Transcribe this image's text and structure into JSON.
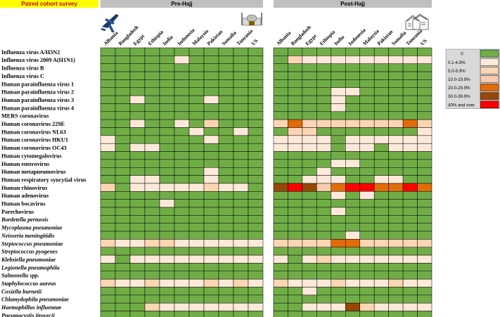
{
  "header": {
    "survey_label": "Paired cohort survey",
    "pre_label": "Pre-Hajj",
    "post_label": "Post-Hajj"
  },
  "chart_data": {
    "type": "heatmap",
    "countries_pre": [
      "Albania",
      "Bangladesh",
      "Egypt",
      "Ethiopia",
      "India",
      "Indonesia",
      "Malaysia",
      "Pakistan",
      "Somalia",
      "Tanzania",
      "US"
    ],
    "countries_post": [
      "Albania",
      "Bangladesh",
      "Egypt",
      "Ethiopia",
      "India",
      "Indonesia",
      "Malaysia",
      "Pakistan",
      "Somalia",
      "Tanzania",
      "US"
    ],
    "pathogens": [
      {
        "name": "Influenza virus A/H3N2",
        "italic": false
      },
      {
        "name": "Influenza virus 2009 A(H1N1)",
        "italic": false
      },
      {
        "name": "Influenza virus B",
        "italic": false
      },
      {
        "name": "Influenza virus C",
        "italic": false
      },
      {
        "name": "Human parainfluenza virus 1",
        "italic": false
      },
      {
        "name": "Human parainfluenza virus 2",
        "italic": false
      },
      {
        "name": "Human parainfluenza virus 3",
        "italic": false
      },
      {
        "name": "Human parainfluenza virus 4",
        "italic": false
      },
      {
        "name": "MERS coronavirus",
        "italic": false
      },
      {
        "name": "Human coronavirus 229E",
        "italic": false
      },
      {
        "name": "Human coronavirus NL63",
        "italic": false
      },
      {
        "name": "Human coronavirus HKU1",
        "italic": false
      },
      {
        "name": "Human coronavirus OC43",
        "italic": false
      },
      {
        "name": "Human cytomegalovirus",
        "italic": false
      },
      {
        "name": "Human enterovirus",
        "italic": false
      },
      {
        "name": "Human metapneumovirus",
        "italic": false
      },
      {
        "name": "Human respiratory syncytial virus",
        "italic": false
      },
      {
        "name": "Human rhinovirus",
        "italic": false
      },
      {
        "name": "Human adenovirus",
        "italic": false
      },
      {
        "name": "Human bocavirus",
        "italic": false
      },
      {
        "name": "Parechovirus",
        "italic": false
      },
      {
        "name": "Bordetella pertussis",
        "italic": true
      },
      {
        "name": "Mycoplasma pneumoniae",
        "italic": true
      },
      {
        "name": "Neisseria meningitidis",
        "italic": true
      },
      {
        "name": "Steptococcus pneumoniae",
        "italic": true
      },
      {
        "name": "Streptococcus pyogenes",
        "italic": true
      },
      {
        "name": "Klebsiella pneumoniae",
        "italic": true
      },
      {
        "name": "Legionella pneumophila",
        "italic": true
      },
      {
        "name": "Salmonella spp.",
        "italic": true
      },
      {
        "name": "Staphylococcus aureus",
        "italic": true
      },
      {
        "name": "Coxiella burnetii",
        "italic": true
      },
      {
        "name": "Chlamydophila pneumoniae",
        "italic": true
      },
      {
        "name": "Haemophillus influenzae",
        "italic": true
      },
      {
        "name": "Pneumocystis jirovecii",
        "italic": true
      }
    ],
    "legend": [
      {
        "label": "0",
        "color": "#70ad47"
      },
      {
        "label": "0.1-4.9%",
        "color": "#fde9d9"
      },
      {
        "label": "5.0-9.9%",
        "color": "#fcd5b4"
      },
      {
        "label": "10.0-19.9%",
        "color": "#f8cbad"
      },
      {
        "label": "20.0-29.9%",
        "color": "#e26b0a"
      },
      {
        "label": "30.0-39.9%",
        "color": "#974706"
      },
      {
        "label": "40% and over",
        "color": "#ff0000"
      }
    ],
    "pre": [
      [
        0,
        0,
        0,
        0,
        0,
        0,
        0,
        0,
        0,
        0,
        0
      ],
      [
        0,
        0,
        0,
        0,
        0,
        1,
        0,
        0,
        0,
        0,
        0
      ],
      [
        0,
        0,
        0,
        0,
        0,
        0,
        0,
        0,
        0,
        0,
        0
      ],
      [
        0,
        0,
        0,
        0,
        0,
        0,
        0,
        0,
        0,
        0,
        0
      ],
      [
        0,
        0,
        0,
        0,
        0,
        0,
        0,
        0,
        0,
        0,
        0
      ],
      [
        0,
        0,
        0,
        0,
        0,
        0,
        0,
        0,
        0,
        0,
        0
      ],
      [
        0,
        0,
        1,
        0,
        0,
        0,
        0,
        1,
        0,
        0,
        0
      ],
      [
        0,
        0,
        0,
        0,
        0,
        0,
        0,
        0,
        0,
        0,
        0
      ],
      [
        0,
        0,
        0,
        0,
        0,
        0,
        0,
        0,
        0,
        0,
        0
      ],
      [
        0,
        0,
        1,
        0,
        0,
        1,
        0,
        2,
        0,
        0,
        0
      ],
      [
        0,
        0,
        0,
        0,
        0,
        0,
        1,
        0,
        0,
        1,
        0
      ],
      [
        1,
        0,
        0,
        0,
        0,
        0,
        0,
        1,
        0,
        0,
        0
      ],
      [
        1,
        0,
        1,
        1,
        0,
        0,
        0,
        0,
        0,
        0,
        0
      ],
      [
        0,
        0,
        0,
        0,
        0,
        0,
        0,
        0,
        0,
        0,
        0
      ],
      [
        0,
        0,
        0,
        0,
        0,
        0,
        0,
        0,
        0,
        0,
        0
      ],
      [
        0,
        0,
        0,
        0,
        0,
        0,
        0,
        1,
        0,
        0,
        0
      ],
      [
        0,
        0,
        1,
        1,
        0,
        0,
        0,
        1,
        0,
        0,
        0
      ],
      [
        2,
        0,
        1,
        1,
        1,
        1,
        1,
        2,
        1,
        1,
        0
      ],
      [
        0,
        0,
        0,
        0,
        0,
        0,
        0,
        0,
        0,
        0,
        0
      ],
      [
        0,
        0,
        0,
        0,
        1,
        0,
        0,
        0,
        0,
        0,
        0
      ],
      [
        0,
        0,
        0,
        0,
        0,
        0,
        0,
        0,
        0,
        0,
        0
      ],
      [
        0,
        0,
        0,
        0,
        0,
        0,
        0,
        0,
        0,
        0,
        0
      ],
      [
        0,
        0,
        0,
        0,
        0,
        0,
        0,
        0,
        0,
        0,
        0
      ],
      [
        0,
        0,
        0,
        0,
        0,
        0,
        0,
        0,
        0,
        0,
        0
      ],
      [
        2,
        1,
        1,
        2,
        2,
        1,
        1,
        1,
        1,
        1,
        1
      ],
      [
        0,
        0,
        0,
        0,
        0,
        0,
        0,
        0,
        0,
        0,
        0
      ],
      [
        1,
        0,
        1,
        1,
        1,
        1,
        1,
        1,
        1,
        1,
        1
      ],
      [
        0,
        0,
        0,
        0,
        0,
        0,
        0,
        0,
        0,
        0,
        0
      ],
      [
        0,
        0,
        0,
        0,
        0,
        0,
        0,
        0,
        0,
        0,
        0
      ],
      [
        2,
        1,
        1,
        2,
        1,
        1,
        1,
        2,
        1,
        2,
        1
      ],
      [
        0,
        0,
        0,
        0,
        0,
        0,
        0,
        0,
        0,
        0,
        0
      ],
      [
        0,
        0,
        0,
        0,
        0,
        0,
        0,
        0,
        0,
        0,
        0
      ],
      [
        0,
        0,
        0,
        2,
        1,
        1,
        1,
        1,
        1,
        1,
        1
      ],
      [
        0,
        0,
        0,
        0,
        0,
        0,
        0,
        0,
        0,
        0,
        0
      ]
    ],
    "post": [
      [
        0,
        0,
        0,
        0,
        0,
        0,
        0,
        0,
        0,
        0,
        0
      ],
      [
        0,
        2,
        1,
        1,
        1,
        1,
        1,
        1,
        1,
        1,
        1
      ],
      [
        0,
        0,
        0,
        0,
        0,
        0,
        0,
        0,
        0,
        0,
        0
      ],
      [
        0,
        0,
        0,
        0,
        0,
        0,
        0,
        0,
        0,
        0,
        0
      ],
      [
        0,
        0,
        0,
        0,
        0,
        0,
        0,
        0,
        0,
        0,
        0
      ],
      [
        0,
        0,
        0,
        0,
        1,
        1,
        0,
        0,
        0,
        0,
        0
      ],
      [
        0,
        0,
        0,
        0,
        1,
        0,
        0,
        0,
        0,
        0,
        0
      ],
      [
        0,
        0,
        0,
        0,
        1,
        0,
        0,
        0,
        0,
        0,
        0
      ],
      [
        0,
        0,
        0,
        0,
        0,
        0,
        0,
        0,
        0,
        0,
        0
      ],
      [
        2,
        4,
        2,
        2,
        2,
        2,
        2,
        2,
        2,
        4,
        2
      ],
      [
        0,
        2,
        2,
        0,
        0,
        0,
        0,
        0,
        0,
        0,
        1
      ],
      [
        1,
        1,
        1,
        1,
        0,
        1,
        1,
        1,
        1,
        1,
        1
      ],
      [
        1,
        1,
        1,
        1,
        0,
        1,
        1,
        0,
        1,
        1,
        1
      ],
      [
        0,
        0,
        0,
        0,
        0,
        0,
        0,
        0,
        0,
        0,
        0
      ],
      [
        0,
        0,
        0,
        0,
        1,
        1,
        0,
        0,
        0,
        0,
        0
      ],
      [
        0,
        0,
        0,
        1,
        0,
        0,
        0,
        0,
        0,
        0,
        0
      ],
      [
        0,
        0,
        1,
        1,
        1,
        0,
        0,
        1,
        1,
        0,
        0
      ],
      [
        5,
        6,
        5,
        3,
        4,
        6,
        6,
        4,
        4,
        6,
        4
      ],
      [
        0,
        0,
        0,
        0,
        1,
        0,
        1,
        0,
        0,
        0,
        0
      ],
      [
        0,
        0,
        0,
        0,
        0,
        0,
        0,
        0,
        0,
        0,
        0
      ],
      [
        0,
        0,
        0,
        0,
        1,
        0,
        0,
        0,
        0,
        0,
        0
      ],
      [
        0,
        0,
        0,
        0,
        0,
        0,
        0,
        0,
        0,
        0,
        0
      ],
      [
        0,
        0,
        0,
        0,
        0,
        0,
        0,
        0,
        0,
        0,
        0
      ],
      [
        0,
        0,
        0,
        0,
        0,
        1,
        0,
        0,
        0,
        0,
        0
      ],
      [
        2,
        2,
        2,
        2,
        4,
        4,
        2,
        2,
        2,
        2,
        2
      ],
      [
        0,
        0,
        0,
        0,
        0,
        0,
        0,
        0,
        0,
        0,
        0
      ],
      [
        1,
        0,
        1,
        2,
        1,
        1,
        1,
        1,
        1,
        1,
        1
      ],
      [
        0,
        0,
        0,
        0,
        0,
        0,
        0,
        0,
        0,
        0,
        0
      ],
      [
        0,
        0,
        0,
        0,
        0,
        0,
        0,
        0,
        0,
        0,
        0
      ],
      [
        2,
        1,
        1,
        1,
        2,
        1,
        1,
        1,
        2,
        1,
        1
      ],
      [
        0,
        0,
        1,
        0,
        0,
        0,
        0,
        0,
        0,
        0,
        0
      ],
      [
        0,
        0,
        0,
        0,
        0,
        0,
        0,
        0,
        0,
        0,
        0
      ],
      [
        0,
        0,
        1,
        1,
        1,
        5,
        2,
        1,
        1,
        1,
        1
      ],
      [
        0,
        0,
        0,
        0,
        0,
        0,
        0,
        0,
        0,
        0,
        0
      ]
    ]
  }
}
